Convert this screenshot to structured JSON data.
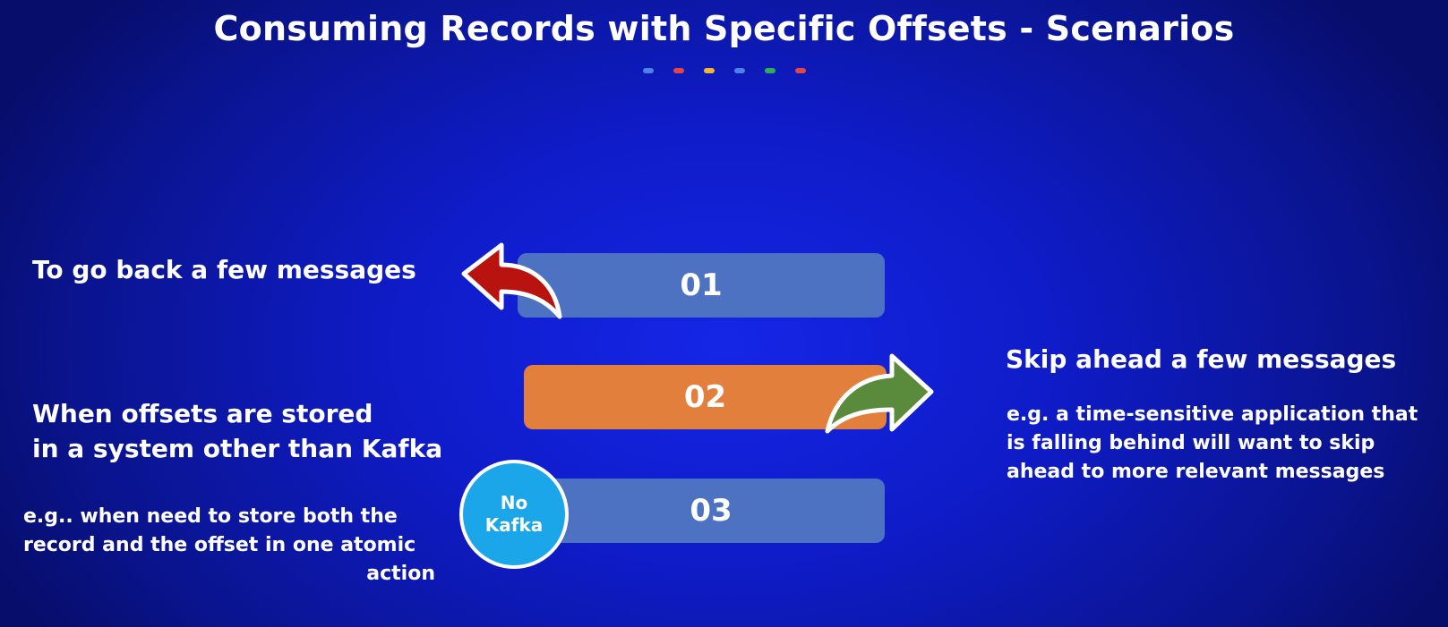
{
  "slide": {
    "title": "Consuming Records with Specific Offsets - Scenarios",
    "dot_colors": [
      "#4f7fe8",
      "#e0464b",
      "#f2b632",
      "#4f7fe8",
      "#2fae5a",
      "#e0464b"
    ]
  },
  "bars": [
    {
      "label": "01",
      "color": "#4d72c2"
    },
    {
      "label": "02",
      "color": "#e27f3c"
    },
    {
      "label": "03",
      "color": "#4d72c2"
    }
  ],
  "badge": {
    "line1": "No",
    "line2": "Kafka",
    "color": "#1aa6e8"
  },
  "arrows": {
    "back_color": "#b8130f",
    "forward_color": "#5a8a3c"
  },
  "scenarios": {
    "back": {
      "heading": "To go back a few messages"
    },
    "store": {
      "heading_lines": [
        "When offsets are stored",
        "in a system other than Kafka"
      ],
      "detail_lines": [
        "e.g.. when need to store both the",
        "record and the offset in one atomic",
        "action"
      ]
    },
    "skip": {
      "heading": "Skip ahead a few messages",
      "detail_lines": [
        "e.g. a time-sensitive application that",
        "is falling behind will want to skip",
        "ahead to more relevant messages"
      ]
    }
  }
}
